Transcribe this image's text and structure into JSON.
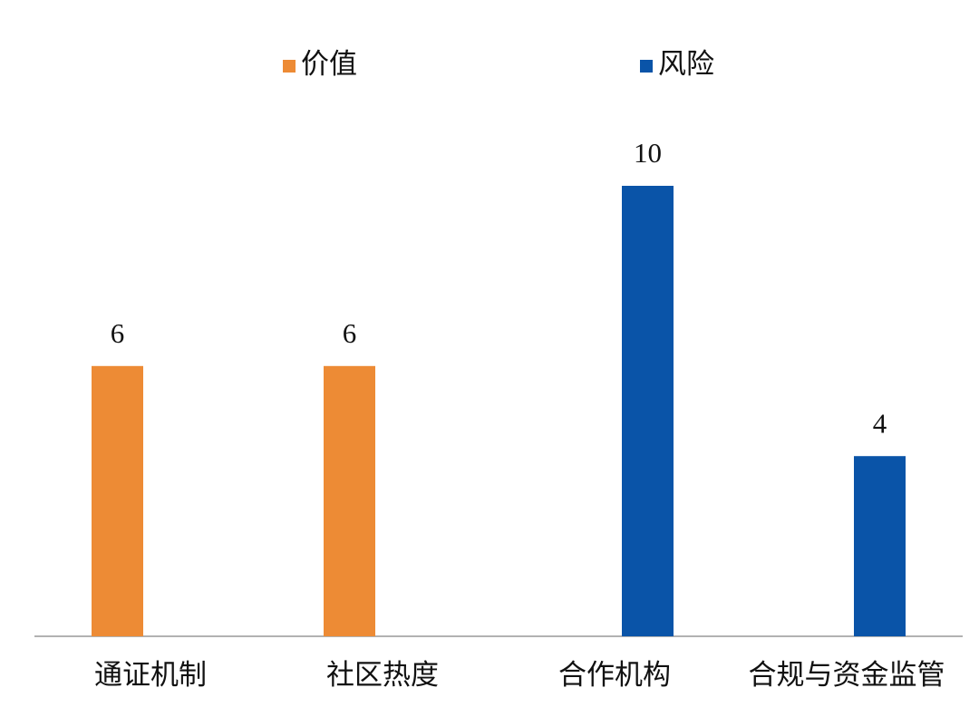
{
  "chart_data": {
    "type": "bar",
    "categories": [
      "通证机制",
      "社区热度",
      "合作机构",
      "合规与资金监管"
    ],
    "series": [
      {
        "name": "价值",
        "color": "#ed8b35",
        "values": [
          6,
          6,
          null,
          null
        ]
      },
      {
        "name": "风险",
        "color": "#0a54a8",
        "values": [
          null,
          null,
          10,
          4
        ]
      }
    ],
    "legend": "top"
  }
}
